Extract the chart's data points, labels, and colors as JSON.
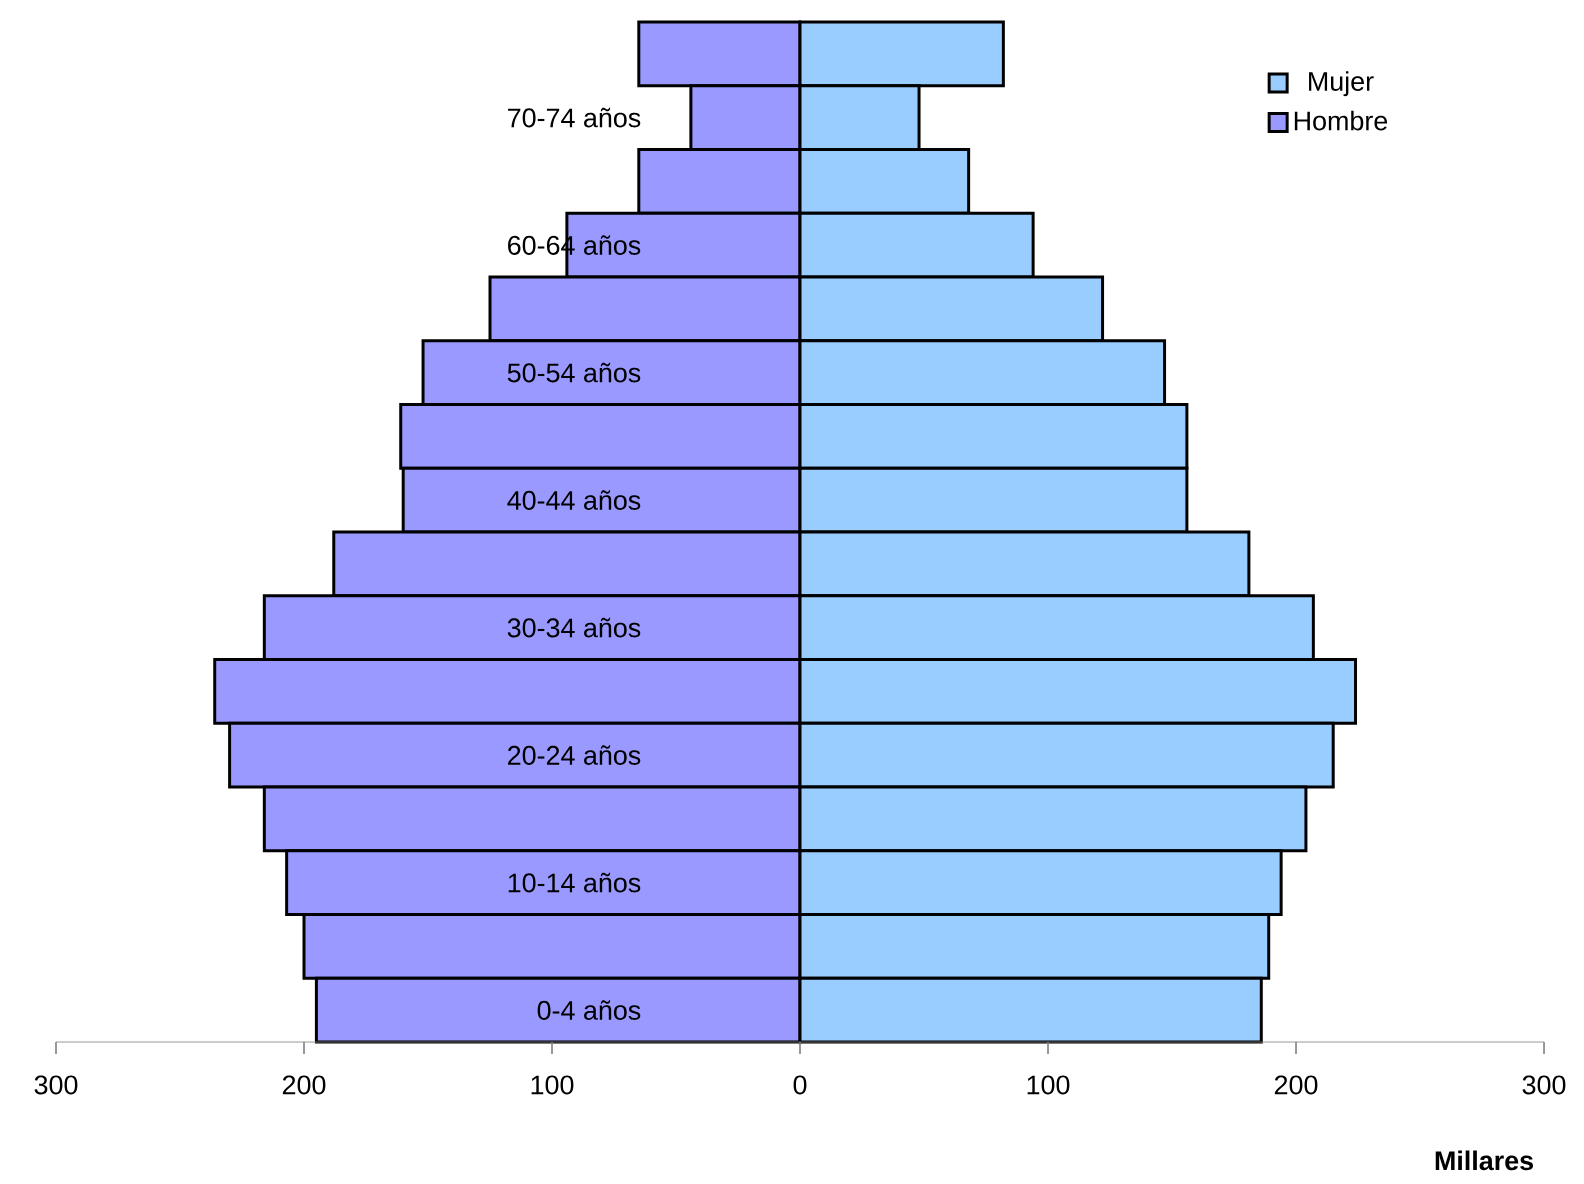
{
  "chart_data": {
    "type": "bar",
    "orientation": "horizontal",
    "xlabel": "Millares",
    "categories": [
      null,
      "70-74 años",
      null,
      "60-64 años",
      null,
      "50-54 años",
      null,
      "40-44 años",
      null,
      "30-34 años",
      null,
      "20-24 años",
      null,
      "10-14 años",
      null,
      "0-4 años"
    ],
    "series": [
      {
        "name": "Mujer",
        "color": "#99ccff",
        "values": [
          82,
          48,
          68,
          94,
          122,
          147,
          156,
          156,
          181,
          207,
          224,
          215,
          204,
          194,
          189,
          186
        ]
      },
      {
        "name": "Hombre",
        "color": "#9999ff",
        "values": [
          -65,
          -44,
          -65,
          -94,
          -125,
          -152,
          -161,
          -160,
          -188,
          -216,
          -236,
          -230,
          -216,
          -207,
          -200,
          -195
        ]
      }
    ],
    "xlim": [
      -300,
      300
    ],
    "xticks": [
      {
        "value": -300,
        "label": "300"
      },
      {
        "value": -200,
        "label": "200"
      },
      {
        "value": -100,
        "label": "100"
      },
      {
        "value": 0,
        "label": "0"
      },
      {
        "value": 100,
        "label": "100"
      },
      {
        "value": 200,
        "label": "200"
      },
      {
        "value": 300,
        "label": "300"
      }
    ],
    "stacked": true,
    "legend": "top right",
    "grid": false
  }
}
